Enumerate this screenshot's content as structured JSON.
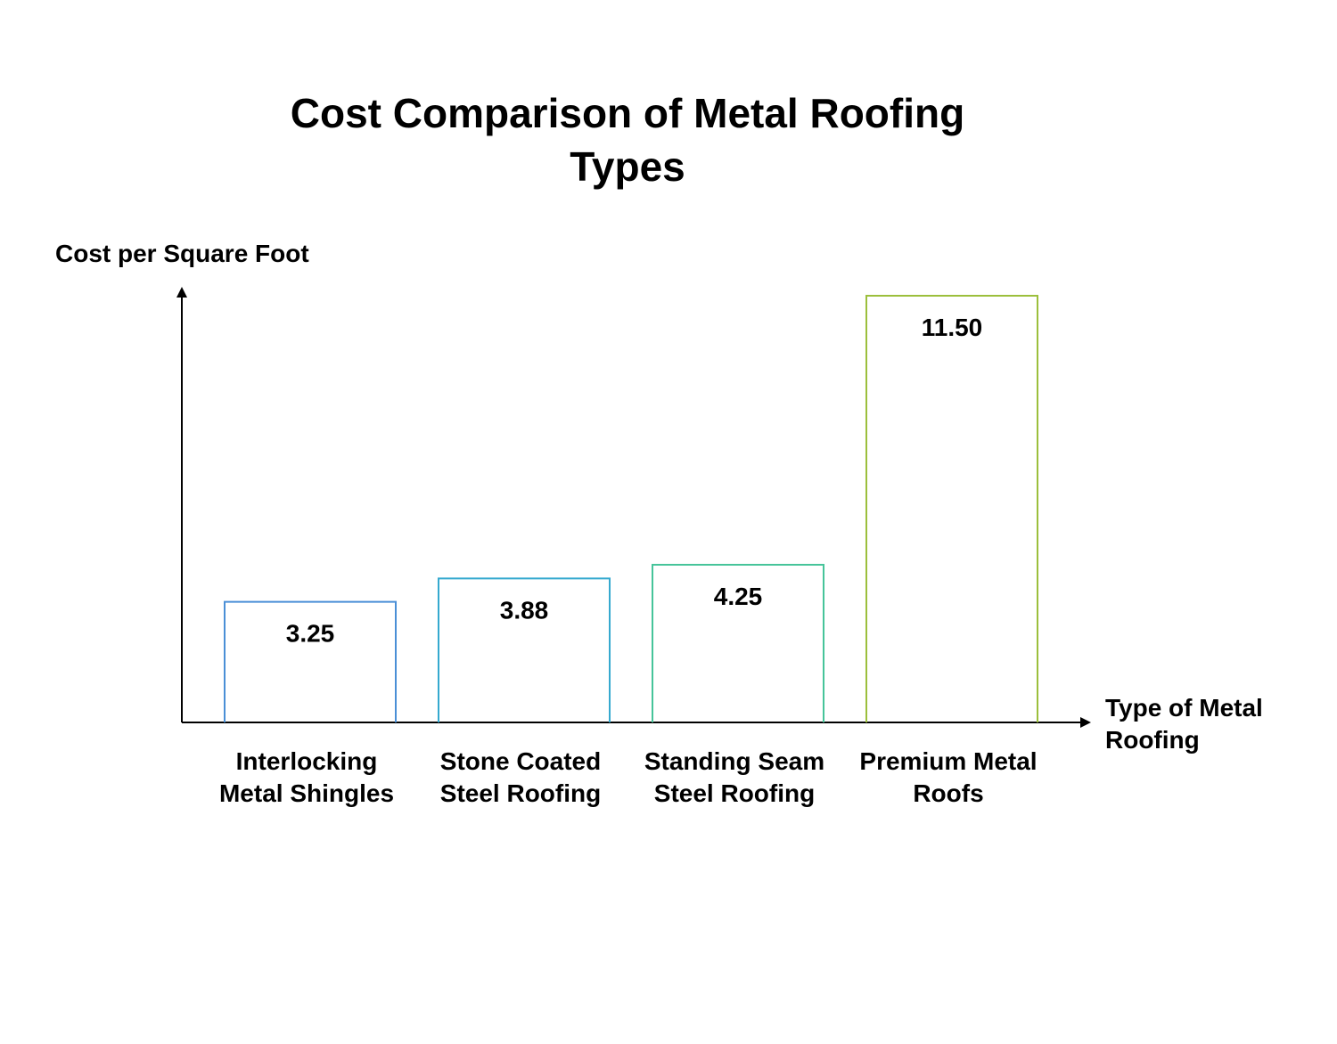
{
  "chart_data": {
    "type": "bar",
    "title_lines": [
      "Cost Comparison of Metal Roofing",
      "Types"
    ],
    "ylabel": "Cost per Square Foot",
    "xlabel_lines": [
      "Type of Metal",
      "Roofing"
    ],
    "categories": [
      [
        "Interlocking",
        "Metal Shingles"
      ],
      [
        "Stone Coated",
        "Steel Roofing"
      ],
      [
        "Standing Seam",
        "Steel Roofing"
      ],
      [
        "Premium Metal",
        "Roofs"
      ]
    ],
    "values": [
      3.25,
      3.88,
      4.25,
      11.5
    ],
    "value_labels": [
      "3.25",
      "3.88",
      "4.25",
      "11.50"
    ],
    "bar_colors": [
      "#4a8fd6",
      "#35a9cf",
      "#46c49a",
      "#9cbf3c"
    ],
    "ylim": [
      0,
      11.5
    ],
    "grid": false,
    "legend": "none"
  }
}
